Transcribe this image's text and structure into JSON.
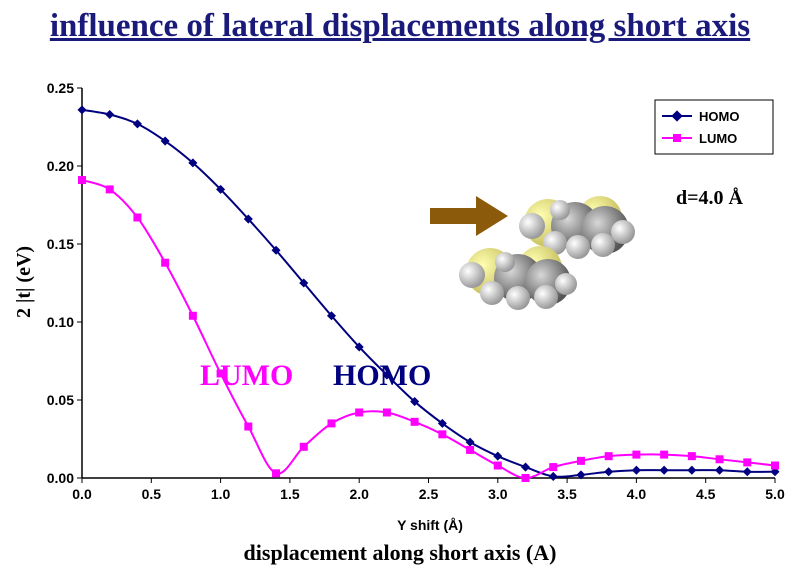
{
  "page": {
    "title": "influence of lateral displacements along short axis",
    "caption": "displacement along short axis (A)"
  },
  "colors": {
    "homo": "#000080",
    "lumo": "#ff00ff",
    "arrow": "#8b5a0a"
  },
  "chart_data": {
    "type": "line",
    "xlabel": "Y shift (Å)",
    "ylabel": "2 |t| (eV)",
    "xlim": [
      0,
      5
    ],
    "ylim": [
      0,
      0.25
    ],
    "xticks": [
      "0.0",
      "0.5",
      "1.0",
      "1.5",
      "2.0",
      "2.5",
      "3.0",
      "3.5",
      "4.0",
      "4.5",
      "5.0"
    ],
    "yticks": [
      "0.00",
      "0.05",
      "0.10",
      "0.15",
      "0.20",
      "0.25"
    ],
    "grid": false,
    "legend_position": "top-right",
    "x": [
      0,
      0.2,
      0.4,
      0.6,
      0.8,
      1.0,
      1.2,
      1.4,
      1.6,
      1.8,
      2.0,
      2.2,
      2.4,
      2.6,
      2.8,
      3.0,
      3.2,
      3.4,
      3.6,
      3.8,
      4.0,
      4.2,
      4.4,
      4.6,
      4.8,
      5.0
    ],
    "series": [
      {
        "name": "HOMO",
        "marker": "diamond",
        "values": [
          0.236,
          0.233,
          0.227,
          0.216,
          0.202,
          0.185,
          0.166,
          0.146,
          0.125,
          0.104,
          0.084,
          0.066,
          0.049,
          0.035,
          0.023,
          0.014,
          0.007,
          0.001,
          0.002,
          0.004,
          0.005,
          0.005,
          0.005,
          0.005,
          0.004,
          0.004
        ]
      },
      {
        "name": "LUMO",
        "marker": "square",
        "values": [
          0.191,
          0.185,
          0.167,
          0.138,
          0.104,
          0.067,
          0.033,
          0.003,
          0.02,
          0.035,
          0.042,
          0.042,
          0.036,
          0.028,
          0.018,
          0.008,
          0.0,
          0.007,
          0.011,
          0.014,
          0.015,
          0.015,
          0.014,
          0.012,
          0.01,
          0.008
        ]
      }
    ],
    "annotations": {
      "lumo_label": "LUMO",
      "homo_label": "HOMO",
      "distance": "d=4.0 Å"
    }
  }
}
